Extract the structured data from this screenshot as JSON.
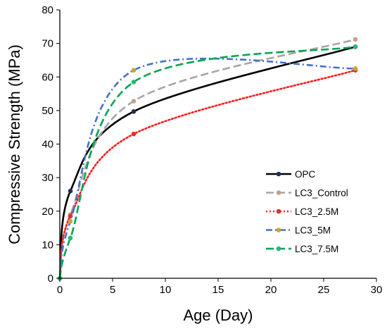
{
  "chart_data": {
    "type": "line",
    "xlabel": "Age (Day)",
    "ylabel": "Compressive Strength (MPa)",
    "xlim": [
      0,
      30
    ],
    "ylim": [
      0,
      80
    ],
    "xticks": [
      "0",
      "5",
      "10",
      "15",
      "20",
      "25",
      "30"
    ],
    "yticks": [
      "0",
      "10",
      "20",
      "30",
      "40",
      "50",
      "60",
      "70",
      "80"
    ],
    "grid": false,
    "legend_position": "bottom-right",
    "series": [
      {
        "name": "OPC",
        "color": "#000000",
        "marker_color": "#1f2f5a",
        "dash": "solid",
        "points": [
          [
            0,
            0
          ],
          [
            1,
            26
          ],
          [
            7,
            49.7
          ],
          [
            28,
            69
          ]
        ]
      },
      {
        "name": "LC3_Control",
        "color": "#a6a6a6",
        "marker_color": "#c4a08a",
        "dash": "long-dash",
        "points": [
          [
            0,
            0
          ],
          [
            1,
            19
          ],
          [
            7,
            52.8
          ],
          [
            28,
            71.2
          ]
        ]
      },
      {
        "name": "LC3_2.5M",
        "color": "#ff1a1a",
        "marker_color": "#e03030",
        "dash": "dotted",
        "points": [
          [
            0,
            0
          ],
          [
            1,
            18.5
          ],
          [
            7,
            43
          ],
          [
            28,
            62
          ]
        ]
      },
      {
        "name": "LC3_5M",
        "color": "#4472c4",
        "marker_color": "#c9a43a",
        "dash": "dash-dot",
        "points": [
          [
            0,
            0
          ],
          [
            1,
            17
          ],
          [
            7,
            62
          ],
          [
            28,
            62.5
          ]
        ]
      },
      {
        "name": "LC3_7.5M",
        "color": "#00a651",
        "marker_color": "#2bb673",
        "dash": "long-dash",
        "points": [
          [
            0,
            0
          ],
          [
            1,
            12
          ],
          [
            7,
            58.5
          ],
          [
            28,
            69
          ]
        ]
      }
    ]
  }
}
